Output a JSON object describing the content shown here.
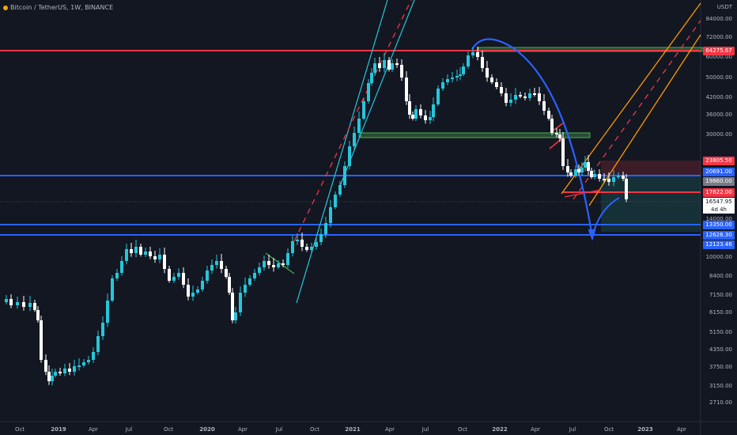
{
  "header": {
    "title": "Bitcoin / TetherUS, 1W, BINANCE"
  },
  "price_axis": {
    "currency": "USDT",
    "ticks": [
      "84000.00",
      "72000.00",
      "60000.00",
      "50000.00",
      "42000.00",
      "36000.00",
      "30000.00",
      "14000.00",
      "10000.00",
      "8400.00",
      "7150.00",
      "6150.00",
      "5150.00",
      "4350.00",
      "3750.00",
      "3150.00",
      "2710.00"
    ]
  },
  "time_axis": {
    "labels": [
      "Oct",
      "2019",
      "Apr",
      "Jul",
      "Oct",
      "2020",
      "Apr",
      "Jul",
      "Oct",
      "2021",
      "Apr",
      "Jul",
      "Oct",
      "2022",
      "Apr",
      "Jul",
      "Oct",
      "2023",
      "Apr"
    ]
  },
  "price_badges": [
    {
      "text": "64275.67",
      "color": "#f23645"
    },
    {
      "text": "23805.50",
      "color": "#f23645"
    },
    {
      "text": "20691.00",
      "color": "#2962ff"
    },
    {
      "text": "19860.00",
      "color": "#787b86"
    },
    {
      "text": "17622.00",
      "color": "#f23645"
    },
    {
      "text": "16547.95",
      "color": "#ffffff"
    },
    {
      "text": "13350.00",
      "color": "#2962ff"
    },
    {
      "text": "12626.30",
      "color": "#2962ff"
    },
    {
      "text": "12123.46",
      "color": "#2962ff"
    }
  ],
  "countdown": "4d 4h",
  "colors": {
    "background": "#131722",
    "up": "#26c6da",
    "down": "#ffffff",
    "resistance": "#f23645",
    "support": "#2962ff",
    "zone": "#4caf50",
    "channel_orange": "#ff9800"
  }
}
